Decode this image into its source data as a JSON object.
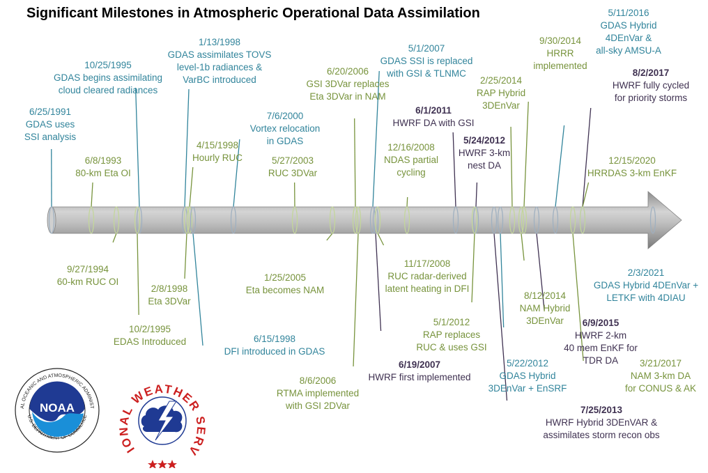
{
  "title": "Significant Milestones in Atmospheric Operational Data Assimilation",
  "colors": {
    "gdas": "#31849b",
    "meso": "#77933c",
    "hwrf": "#3f3151",
    "arrow_body": "#a6a6a6",
    "ring": "#c3d69b"
  },
  "events": [
    {
      "id": "e01",
      "date": "6/25/1991",
      "text": "GDAS uses\nSSI analysis",
      "group": "gdas"
    },
    {
      "id": "e02",
      "date": "6/8/1993",
      "text": "80-km Eta OI",
      "group": "meso"
    },
    {
      "id": "e03",
      "date": "9/27/1994",
      "text": "60-km RUC OI",
      "group": "meso"
    },
    {
      "id": "e04",
      "date": "10/25/1995",
      "text": "GDAS begins assimilating\ncloud cleared radiances",
      "group": "gdas"
    },
    {
      "id": "e05",
      "date": "10/2/1995",
      "text": "EDAS Introduced",
      "group": "meso"
    },
    {
      "id": "e06",
      "date": "1/13/1998",
      "text": "GDAS assimilates TOVS\nlevel-1b radiances &\nVarBC introduced",
      "group": "gdas"
    },
    {
      "id": "e07",
      "date": "2/8/1998",
      "text": "Eta 3DVar",
      "group": "meso"
    },
    {
      "id": "e08",
      "date": "4/15/1998",
      "text": "Hourly RUC",
      "group": "meso"
    },
    {
      "id": "e09",
      "date": "6/15/1998",
      "text": "DFI introduced in GDAS",
      "group": "gdas"
    },
    {
      "id": "e10",
      "date": "7/6/2000",
      "text": "Vortex relocation\nin GDAS",
      "group": "gdas"
    },
    {
      "id": "e11",
      "date": "5/27/2003",
      "text": "RUC 3DVar",
      "group": "meso"
    },
    {
      "id": "e12",
      "date": "1/25/2005",
      "text": "Eta becomes NAM",
      "group": "meso"
    },
    {
      "id": "e13",
      "date": "6/20/2006",
      "text": "GSI 3DVar replaces\nEta 3DVar in NAM",
      "group": "meso"
    },
    {
      "id": "e14",
      "date": "8/6/2006",
      "text": "RTMA implemented\nwith GSI 2DVar",
      "group": "meso"
    },
    {
      "id": "e15",
      "date": "5/1/2007",
      "text": "GDAS SSI is replaced\nwith GSI & TLNMC",
      "group": "gdas"
    },
    {
      "id": "e16",
      "date": "6/19/2007",
      "text": "HWRF first implemented",
      "group": "hwrf"
    },
    {
      "id": "e17",
      "date": "12/16/2008",
      "text": "NDAS partial\ncycling",
      "group": "meso"
    },
    {
      "id": "e18",
      "date": "11/17/2008",
      "text": "RUC radar-derived\nlatent heating in DFI",
      "group": "meso"
    },
    {
      "id": "e19",
      "date": "6/1/2011",
      "text": "HWRF DA with GSI",
      "group": "hwrf"
    },
    {
      "id": "e20",
      "date": "5/24/2012",
      "text": "HWRF 3-km\nnest DA",
      "group": "hwrf"
    },
    {
      "id": "e21",
      "date": "5/1/2012",
      "text": "RAP replaces\nRUC & uses GSI",
      "group": "meso"
    },
    {
      "id": "e22",
      "date": "5/22/2012",
      "text": "GDAS Hybrid\n3DEnVar + EnSRF",
      "group": "gdas"
    },
    {
      "id": "e23",
      "date": "7/25/2013",
      "text": "HWRF Hybrid 3DEnVAR &\nassimilates storm recon obs",
      "group": "hwrf"
    },
    {
      "id": "e24",
      "date": "2/25/2014",
      "text": "RAP Hybrid\n3DEnVar",
      "group": "meso"
    },
    {
      "id": "e25",
      "date": "8/12/2014",
      "text": "NAM Hybrid\n3DEnVar",
      "group": "meso"
    },
    {
      "id": "e26",
      "date": "9/30/2014",
      "text": "HRRR\nimplemented",
      "group": "meso"
    },
    {
      "id": "e27",
      "date": "6/9/2015",
      "text": "HWRF 2-km\n40 mem EnKF for\nTDR DA",
      "group": "hwrf"
    },
    {
      "id": "e28",
      "date": "5/11/2016",
      "text": "GDAS Hybrid\n4DEnVar &\nall-sky AMSU-A",
      "group": "gdas"
    },
    {
      "id": "e29",
      "date": "8/2/2017",
      "text": "HWRF fully cycled\nfor priority storms",
      "group": "hwrf"
    },
    {
      "id": "e30",
      "date": "3/21/2017",
      "text": "NAM 3-km DA\nfor CONUS & AK",
      "group": "meso"
    },
    {
      "id": "e31",
      "date": "12/15/2020",
      "text": "HRRDAS 3-km EnKF",
      "group": "meso"
    },
    {
      "id": "e32",
      "date": "2/3/2021",
      "text": "GDAS Hybrid 4DEnVar +\nLETKF with 4DIAU",
      "group": "gdas"
    }
  ],
  "logos": {
    "noaa": {
      "center_text": "NOAA",
      "ring_top": "NATIONAL OCEANIC AND ATMOSPHERIC ADMINISTRATION",
      "ring_bottom": "U.S. DEPARTMENT OF COMMERCE"
    },
    "nws": {
      "ring_text": "NATIONAL WEATHER SERVICE"
    }
  }
}
